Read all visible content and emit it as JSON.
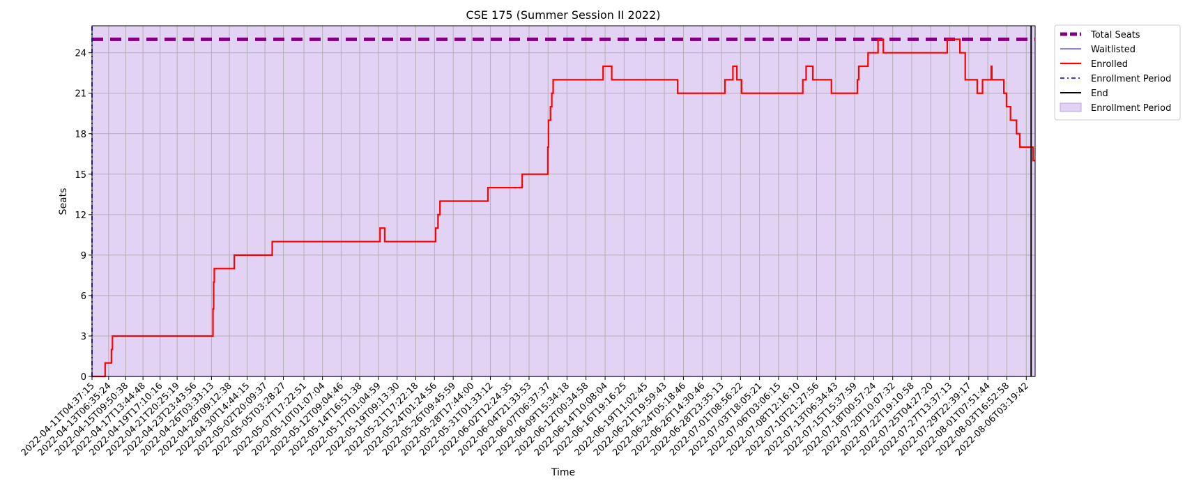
{
  "chart_data": {
    "type": "line",
    "title": "CSE 175 (Summer Session II 2022)",
    "xlabel": "Time",
    "ylabel": "Seats",
    "xlim": [
      "2022-04-11T04:37:15",
      "2022-08-07T06:00:00"
    ],
    "ylim": [
      0,
      26
    ],
    "yticks": [
      0,
      3,
      6,
      9,
      12,
      15,
      18,
      21,
      24
    ],
    "xtick_labels": [
      "2022-04-11T04:37:15",
      "2022-04-13T06:35:24",
      "2022-04-15T09:50:38",
      "2022-04-17T13:44:48",
      "2022-04-19T17:10:16",
      "2022-04-21T20:25:19",
      "2022-04-23T23:43:56",
      "2022-04-26T03:33:13",
      "2022-04-28T09:12:38",
      "2022-04-30T14:44:15",
      "2022-05-02T20:09:37",
      "2022-05-05T03:28:27",
      "2022-05-07T17:22:51",
      "2022-05-10T01:07:04",
      "2022-05-12T09:04:46",
      "2022-05-14T16:51:38",
      "2022-05-17T01:04:59",
      "2022-05-19T09:13:30",
      "2022-05-21T17:22:18",
      "2022-05-24T01:24:56",
      "2022-05-26T09:45:59",
      "2022-05-28T17:44:00",
      "2022-05-31T01:33:12",
      "2022-06-02T12:24:35",
      "2022-06-04T21:33:53",
      "2022-06-07T06:37:37",
      "2022-06-09T15:34:18",
      "2022-06-12T00:34:58",
      "2022-06-14T10:08:04",
      "2022-06-16T19:16:25",
      "2022-06-19T11:02:45",
      "2022-06-21T19:59:43",
      "2022-06-24T05:18:46",
      "2022-06-26T14:30:46",
      "2022-06-28T23:35:13",
      "2022-07-01T08:56:22",
      "2022-07-03T18:05:21",
      "2022-07-06T03:06:15",
      "2022-07-08T12:16:10",
      "2022-07-10T21:27:56",
      "2022-07-13T06:34:43",
      "2022-07-15T15:37:59",
      "2022-07-18T00:57:24",
      "2022-07-20T10:07:32",
      "2022-07-22T19:10:58",
      "2022-07-25T04:27:20",
      "2022-07-27T13:37:13",
      "2022-07-29T22:39:17",
      "2022-08-01T07:51:44",
      "2022-08-03T16:52:58",
      "2022-08-06T03:19:42"
    ],
    "grid": true,
    "legend_position": "outside-top-right",
    "series": [
      {
        "name": "Total Seats",
        "color": "#800080",
        "style": "thick-dashed",
        "points": [
          [
            "2022-04-11T04:37:15",
            25
          ],
          [
            "2022-08-07T06:00:00",
            25
          ]
        ]
      },
      {
        "name": "Waitlisted",
        "color": "#3333ff",
        "style": "solid",
        "points": [
          [
            "2022-04-11T04:37:15",
            0
          ],
          [
            "2022-08-07T06:00:00",
            0
          ]
        ]
      },
      {
        "name": "Enrolled",
        "color": "#ff0000",
        "style": "step",
        "points": [
          [
            "2022-04-11T04:37:15",
            0
          ],
          [
            "2022-04-12T20:00:00",
            1
          ],
          [
            "2022-04-13T15:00:00",
            2
          ],
          [
            "2022-04-13T18:00:00",
            3
          ],
          [
            "2022-04-26T08:00:00",
            5
          ],
          [
            "2022-04-26T10:00:00",
            7
          ],
          [
            "2022-04-26T12:00:00",
            8
          ],
          [
            "2022-04-29T00:00:00",
            9
          ],
          [
            "2022-05-03T18:00:00",
            10
          ],
          [
            "2022-05-17T06:00:00",
            11
          ],
          [
            "2022-05-17T20:00:00",
            10
          ],
          [
            "2022-05-24T05:00:00",
            11
          ],
          [
            "2022-05-24T12:00:00",
            12
          ],
          [
            "2022-05-24T18:00:00",
            13
          ],
          [
            "2022-05-30T18:00:00",
            14
          ],
          [
            "2022-06-04T01:00:00",
            15
          ],
          [
            "2022-06-07T06:00:00",
            17
          ],
          [
            "2022-06-07T08:00:00",
            19
          ],
          [
            "2022-06-07T14:00:00",
            20
          ],
          [
            "2022-06-07T18:00:00",
            21
          ],
          [
            "2022-06-07T22:00:00",
            22
          ],
          [
            "2022-06-14T04:00:00",
            23
          ],
          [
            "2022-06-15T06:00:00",
            22
          ],
          [
            "2022-06-23T12:00:00",
            21
          ],
          [
            "2022-06-29T10:00:00",
            22
          ],
          [
            "2022-06-30T10:00:00",
            23
          ],
          [
            "2022-06-30T22:00:00",
            22
          ],
          [
            "2022-07-01T12:00:00",
            21
          ],
          [
            "2022-07-09T04:00:00",
            22
          ],
          [
            "2022-07-09T14:00:00",
            23
          ],
          [
            "2022-07-10T10:00:00",
            22
          ],
          [
            "2022-07-12T18:00:00",
            21
          ],
          [
            "2022-07-16T00:00:00",
            22
          ],
          [
            "2022-07-16T04:00:00",
            23
          ],
          [
            "2022-07-17T08:00:00",
            24
          ],
          [
            "2022-07-18T14:00:00",
            25
          ],
          [
            "2022-07-19T06:00:00",
            24
          ],
          [
            "2022-07-27T06:00:00",
            25
          ],
          [
            "2022-07-28T20:00:00",
            24
          ],
          [
            "2022-07-29T12:00:00",
            22
          ],
          [
            "2022-07-31T00:00:00",
            21
          ],
          [
            "2022-07-31T16:00:00",
            22
          ],
          [
            "2022-08-01T18:00:00",
            23
          ],
          [
            "2022-08-01T20:00:00",
            22
          ],
          [
            "2022-08-03T08:00:00",
            21
          ],
          [
            "2022-08-03T16:00:00",
            20
          ],
          [
            "2022-08-04T04:00:00",
            19
          ],
          [
            "2022-08-04T22:00:00",
            18
          ],
          [
            "2022-08-05T08:00:00",
            17
          ],
          [
            "2022-08-07T00:00:00",
            16
          ]
        ]
      },
      {
        "name": "Enrollment Period",
        "color": "#3333ff",
        "style": "dashdot-vertical",
        "points": [
          [
            "2022-04-11T04:37:15",
            0
          ],
          [
            "2022-04-11T04:37:15",
            26
          ]
        ]
      },
      {
        "name": "End",
        "color": "#000000",
        "style": "vertical-line",
        "points": [
          [
            "2022-08-06T18:00:00",
            0
          ],
          [
            "2022-08-06T18:00:00",
            26
          ]
        ]
      },
      {
        "name": "Enrollment Period",
        "color": "#e2d3f5",
        "style": "shaded-span",
        "span": [
          "2022-04-11T04:37:15",
          "2022-08-07T06:00:00"
        ]
      }
    ]
  }
}
